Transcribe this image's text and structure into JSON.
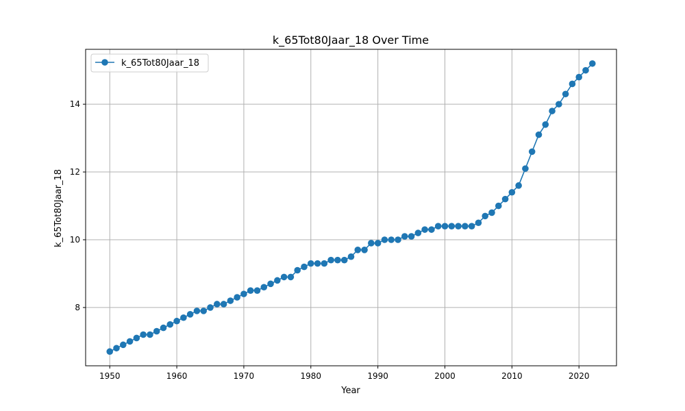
{
  "chart_data": {
    "type": "line",
    "title": "k_65Tot80Jaar_18 Over Time",
    "xlabel": "Year",
    "ylabel": "k_65Tot80Jaar_18",
    "xlim": [
      1946.4,
      2025.6
    ],
    "ylim": [
      6.28,
      15.62
    ],
    "x_ticks": [
      1950,
      1960,
      1970,
      1980,
      1990,
      2000,
      2010,
      2020
    ],
    "y_ticks": [
      8,
      10,
      12,
      14
    ],
    "grid": true,
    "legend_position": "upper-left",
    "series": [
      {
        "name": "k_65Tot80Jaar_18",
        "color": "#1f77b4",
        "marker": "circle",
        "x": [
          1950,
          1951,
          1952,
          1953,
          1954,
          1955,
          1956,
          1957,
          1958,
          1959,
          1960,
          1961,
          1962,
          1963,
          1964,
          1965,
          1966,
          1967,
          1968,
          1969,
          1970,
          1971,
          1972,
          1973,
          1974,
          1975,
          1976,
          1977,
          1978,
          1979,
          1980,
          1981,
          1982,
          1983,
          1984,
          1985,
          1986,
          1987,
          1988,
          1989,
          1990,
          1991,
          1992,
          1993,
          1994,
          1995,
          1996,
          1997,
          1998,
          1999,
          2000,
          2001,
          2002,
          2003,
          2004,
          2005,
          2006,
          2007,
          2008,
          2009,
          2010,
          2011,
          2012,
          2013,
          2014,
          2015,
          2016,
          2017,
          2018,
          2019,
          2020,
          2021,
          2022
        ],
        "values": [
          6.7,
          6.8,
          6.9,
          7.0,
          7.1,
          7.2,
          7.2,
          7.3,
          7.4,
          7.5,
          7.6,
          7.7,
          7.8,
          7.9,
          7.9,
          8.0,
          8.1,
          8.1,
          8.2,
          8.3,
          8.4,
          8.5,
          8.5,
          8.6,
          8.7,
          8.8,
          8.9,
          8.9,
          9.1,
          9.2,
          9.3,
          9.3,
          9.3,
          9.4,
          9.4,
          9.4,
          9.5,
          9.7,
          9.7,
          9.9,
          9.9,
          10.0,
          10.0,
          10.0,
          10.1,
          10.1,
          10.2,
          10.3,
          10.3,
          10.4,
          10.4,
          10.4,
          10.4,
          10.4,
          10.4,
          10.5,
          10.7,
          10.8,
          11.0,
          11.2,
          11.4,
          11.6,
          12.1,
          12.6,
          13.1,
          13.4,
          13.8,
          14.0,
          14.3,
          14.6,
          14.8,
          15.0,
          15.2
        ]
      }
    ]
  }
}
